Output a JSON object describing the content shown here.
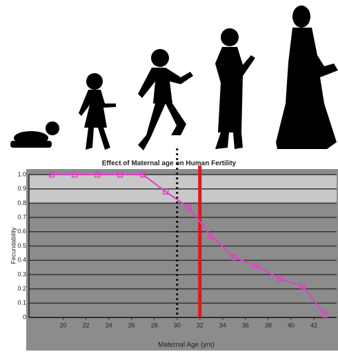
{
  "chart_data": {
    "type": "line",
    "title": "Effect of Maternal age on Human Fertility",
    "xlabel": "Maternal Age (yrs)",
    "ylabel": "Fecundability",
    "x": [
      19,
      21,
      23,
      25,
      27,
      29,
      31,
      33,
      35,
      37,
      39,
      41,
      43
    ],
    "series": [
      {
        "name": "Fecundability",
        "color": "#e040c8",
        "values": [
          1.0,
          1.0,
          1.0,
          1.0,
          1.0,
          0.88,
          0.77,
          0.57,
          0.42,
          0.36,
          0.27,
          0.22,
          0.02
        ]
      }
    ],
    "xlim": [
      17,
      44
    ],
    "xticks": [
      20,
      22,
      24,
      26,
      28,
      30,
      32,
      34,
      36,
      38,
      40,
      42
    ],
    "ylim": [
      0,
      1
    ],
    "yticks": [
      0,
      0.1,
      0.2,
      0.3,
      0.4,
      0.5,
      0.6,
      0.7,
      0.8,
      0.9,
      {
        "value": 1,
        "label": "1.0"
      }
    ],
    "grid": true,
    "markers": [
      {
        "x": 30,
        "color": "#111111",
        "style": "dotted"
      },
      {
        "x": 32,
        "color": "#e01818",
        "style": "solid"
      }
    ]
  }
}
